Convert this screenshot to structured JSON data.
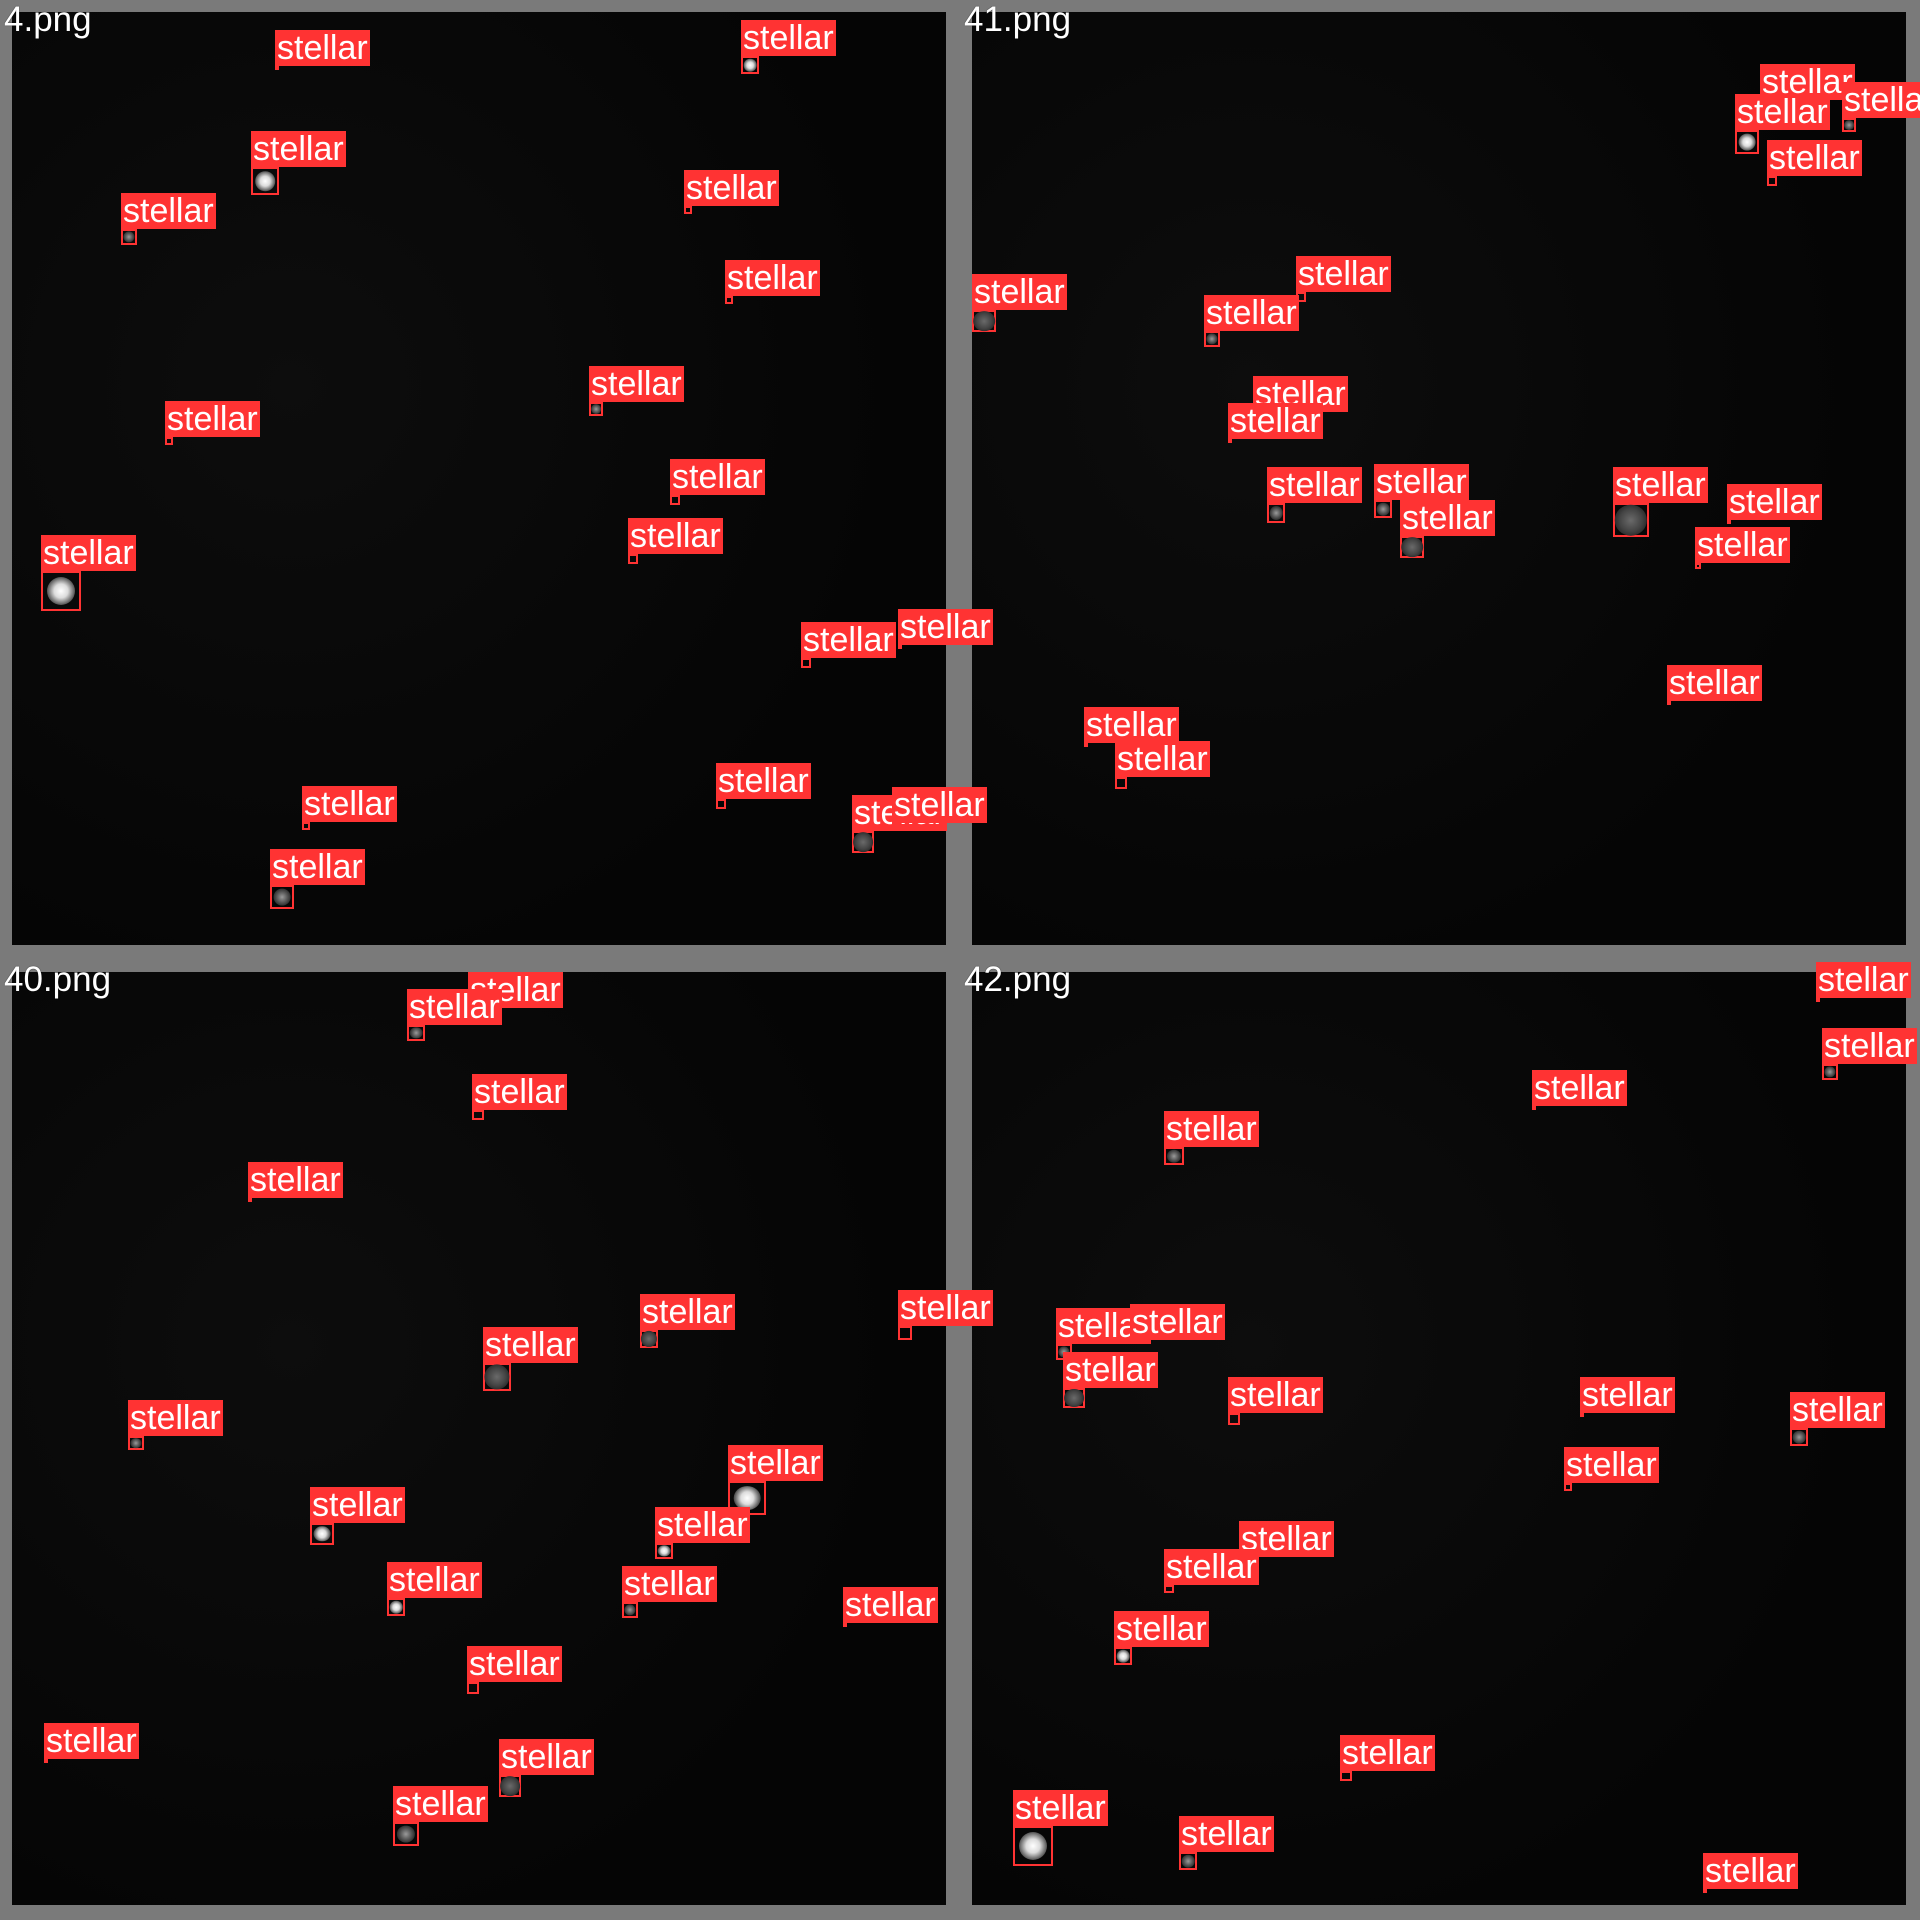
{
  "label_text": "stellar",
  "colors": {
    "label_bg": "#ff3333",
    "border": "#7a7a7a",
    "field": "#050505"
  },
  "panels": [
    {
      "file": "4.png",
      "count": 20
    },
    {
      "file": "41.png",
      "count": 21
    },
    {
      "file": "40.png",
      "count": 21
    },
    {
      "file": "42.png",
      "count": 20
    }
  ]
}
